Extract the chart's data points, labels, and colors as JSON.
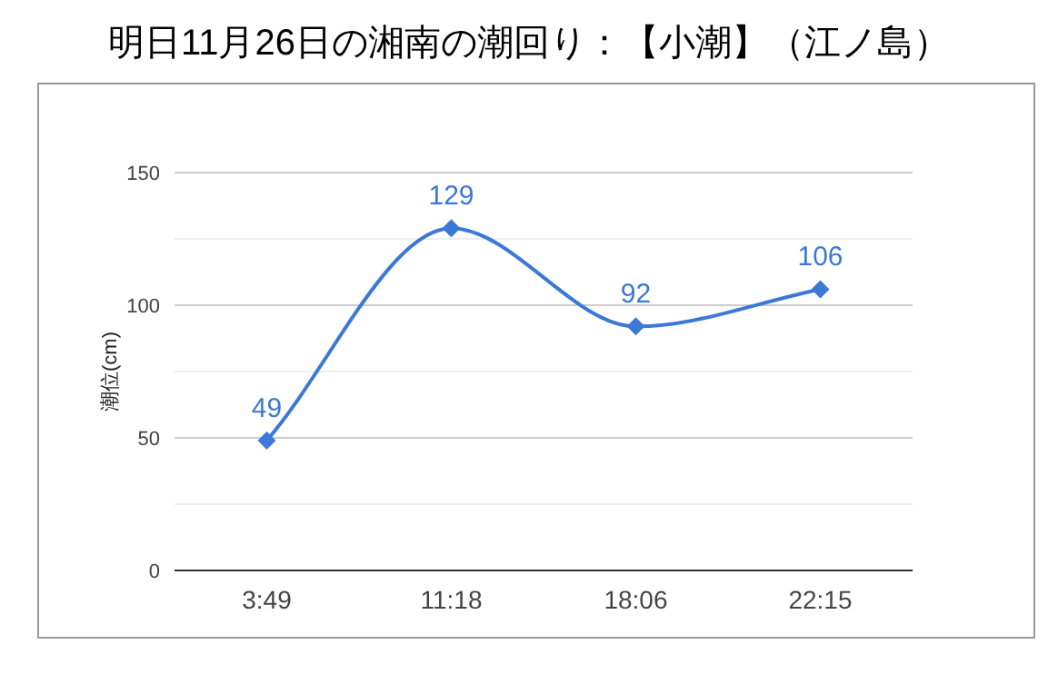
{
  "chart_data": {
    "type": "line",
    "title": "明日11月26日の湘南の潮回り：【小潮】（江ノ島）",
    "ylabel": "潮位(cm)",
    "categories": [
      "3:49",
      "11:18",
      "18:06",
      "22:15"
    ],
    "series": [
      {
        "color": "#3c78d8",
        "values": [
          49,
          129,
          92,
          106
        ]
      }
    ],
    "ylim": [
      0,
      150
    ],
    "yticks": [
      0,
      {
        "value": 25,
        "label": null
      },
      50,
      {
        "value": 75,
        "label": null
      },
      100,
      {
        "value": 125,
        "label": null
      },
      150
    ],
    "grid": "y",
    "marker": "diamond",
    "line_style": "solid",
    "data_labels": true
  }
}
